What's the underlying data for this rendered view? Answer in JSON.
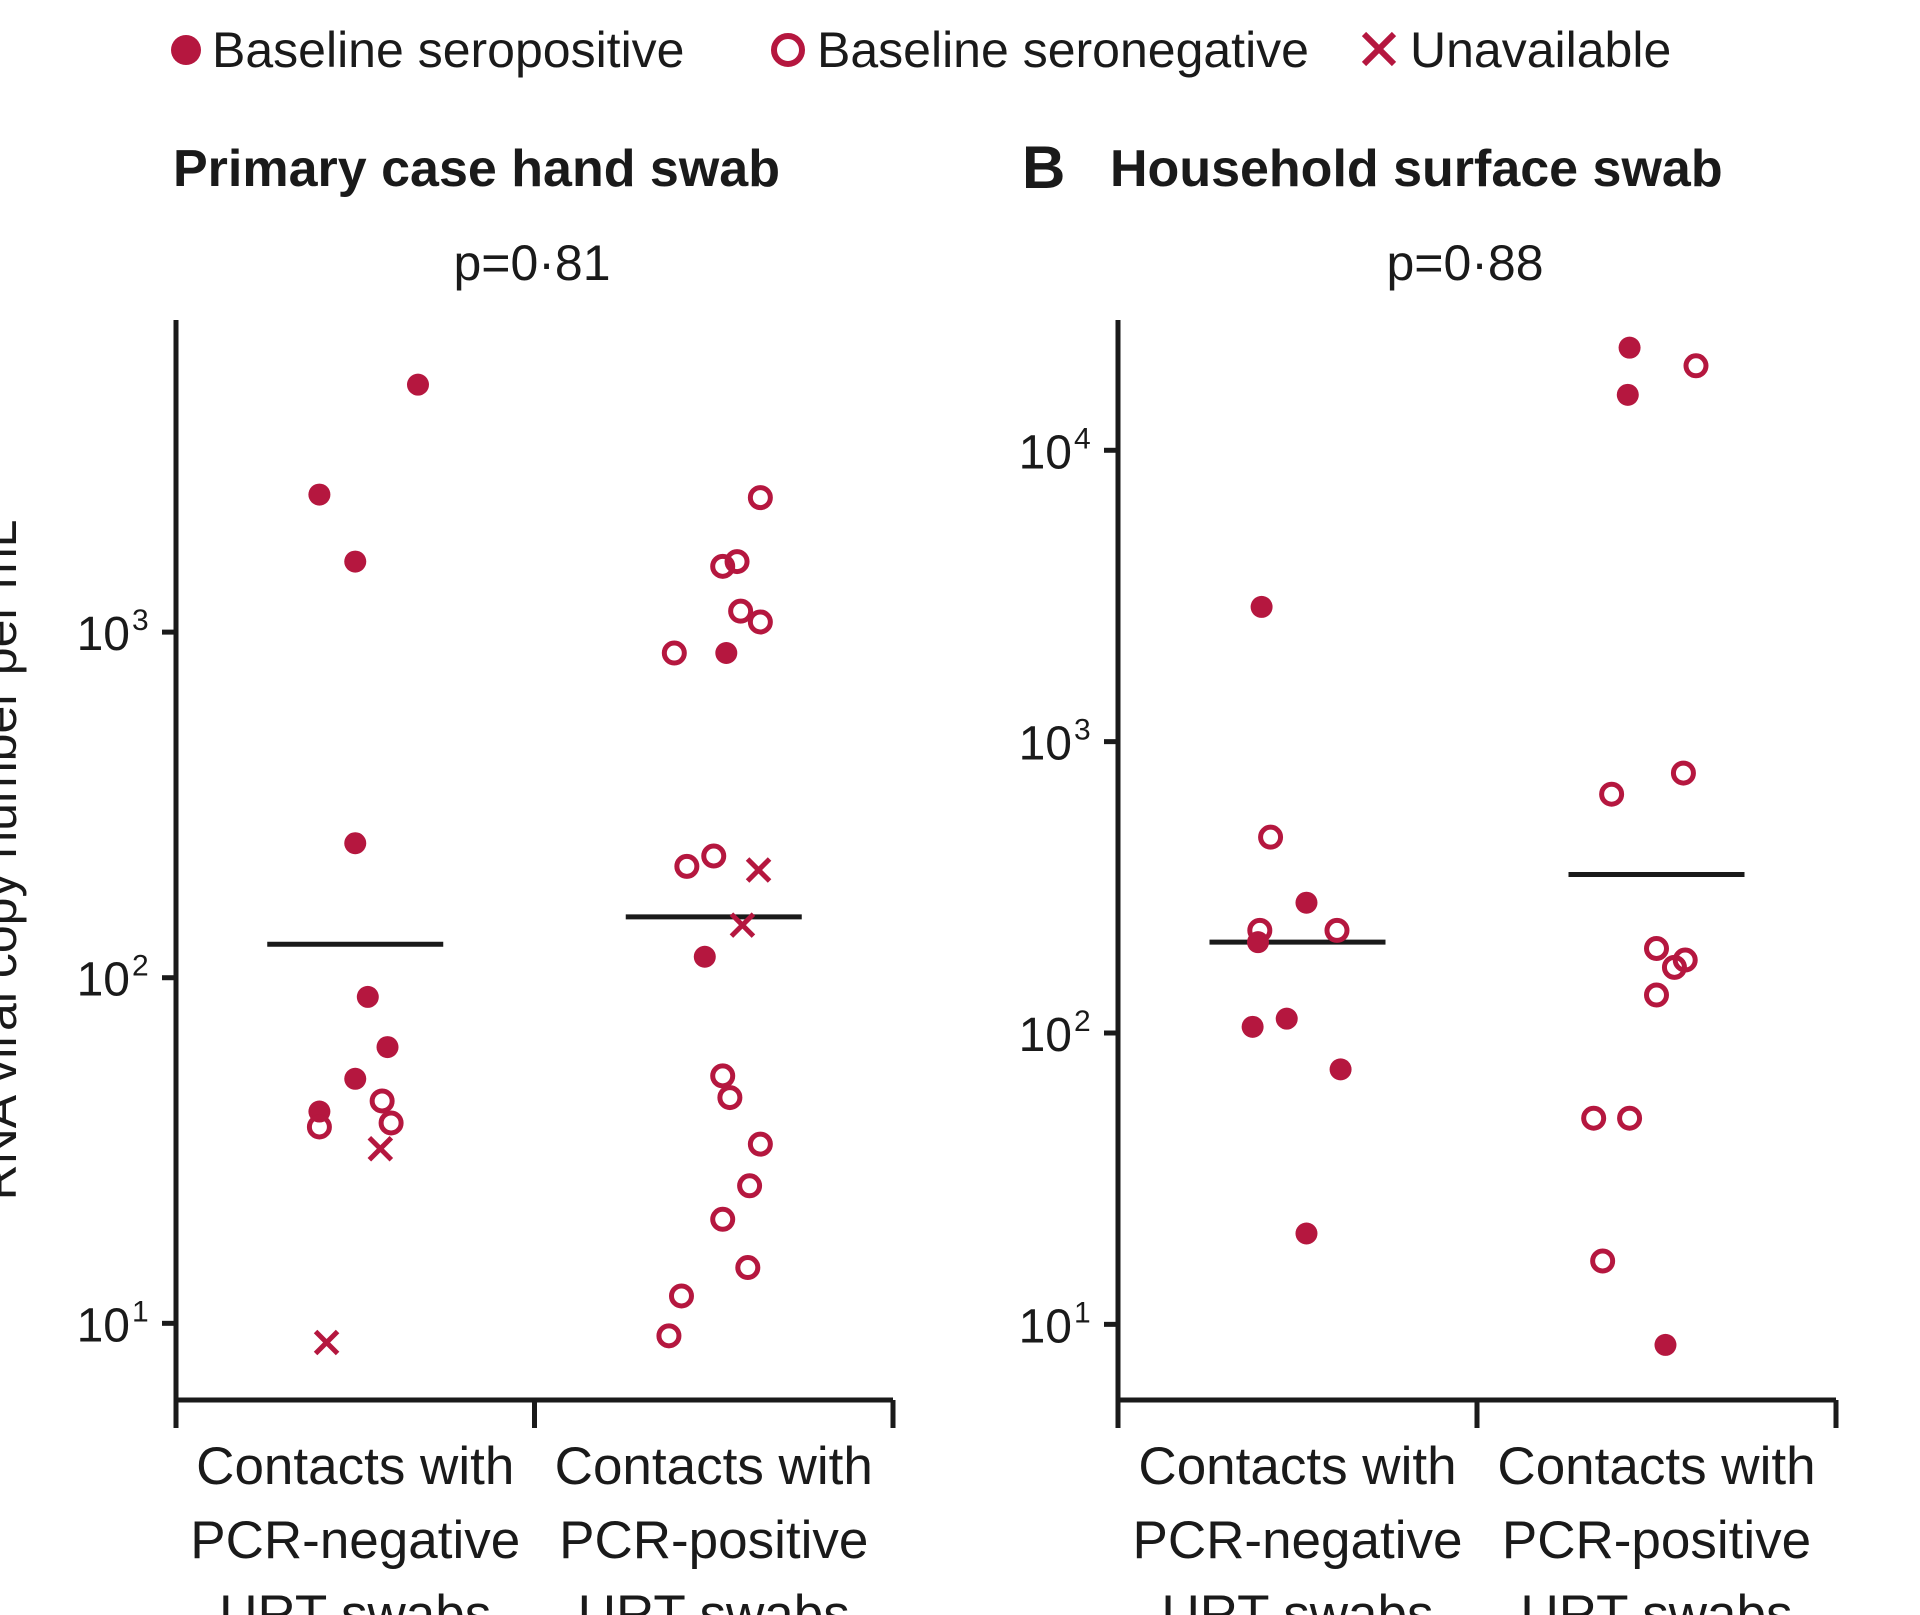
{
  "legend": {
    "items": [
      {
        "label": "Baseline seropositive",
        "marker": "filled-circle"
      },
      {
        "label": "Baseline seronegative",
        "marker": "open-circle"
      },
      {
        "label": "Unavailable",
        "marker": "cross"
      }
    ]
  },
  "colors": {
    "accent": "#b5173f",
    "axis": "#1a1a1a",
    "median": "#1a1a1a"
  },
  "chart_data": [
    {
      "type": "scatter",
      "panel_letter": "",
      "title": "Primary case hand swab",
      "annotation": "p=0·81",
      "ylabel": "RNA viral copy number per mL",
      "y_scale": "log",
      "ylim": [
        6,
        8000
      ],
      "y_ticks": [
        {
          "value": 10,
          "base": "10",
          "exp": "1"
        },
        {
          "value": 100,
          "base": "10",
          "exp": "2"
        },
        {
          "value": 1000,
          "base": "10",
          "exp": "3"
        }
      ],
      "categories": [
        {
          "lines": [
            "Contacts with",
            "PCR-negative",
            "URT swabs"
          ]
        },
        {
          "lines": [
            "Contacts with",
            "PCR-positive",
            "URT swabs"
          ]
        }
      ],
      "medians": [
        125,
        150
      ],
      "points": [
        {
          "cat": 0,
          "dx": 0.35,
          "y": 5200,
          "status": "seropositive"
        },
        {
          "cat": 0,
          "dx": -0.2,
          "y": 2500,
          "status": "seropositive"
        },
        {
          "cat": 0,
          "dx": 0.0,
          "y": 1600,
          "status": "seropositive"
        },
        {
          "cat": 0,
          "dx": 0.0,
          "y": 245,
          "status": "seropositive"
        },
        {
          "cat": 0,
          "dx": 0.07,
          "y": 88,
          "status": "seropositive"
        },
        {
          "cat": 0,
          "dx": 0.18,
          "y": 63,
          "status": "seropositive"
        },
        {
          "cat": 0,
          "dx": 0.0,
          "y": 51,
          "status": "seropositive"
        },
        {
          "cat": 0,
          "dx": -0.2,
          "y": 41,
          "status": "seropositive"
        },
        {
          "cat": 0,
          "dx": 0.15,
          "y": 44,
          "status": "seronegative"
        },
        {
          "cat": 0,
          "dx": -0.2,
          "y": 37,
          "status": "seronegative"
        },
        {
          "cat": 0,
          "dx": 0.2,
          "y": 38,
          "status": "seronegative"
        },
        {
          "cat": 0,
          "dx": 0.14,
          "y": 32,
          "status": "unavailable"
        },
        {
          "cat": 0,
          "dx": -0.16,
          "y": 8.8,
          "status": "unavailable"
        },
        {
          "cat": 1,
          "dx": 0.26,
          "y": 2450,
          "status": "seronegative"
        },
        {
          "cat": 1,
          "dx": 0.05,
          "y": 1550,
          "status": "seronegative"
        },
        {
          "cat": 1,
          "dx": 0.13,
          "y": 1600,
          "status": "seronegative"
        },
        {
          "cat": 1,
          "dx": 0.15,
          "y": 1150,
          "status": "seronegative"
        },
        {
          "cat": 1,
          "dx": 0.26,
          "y": 1070,
          "status": "seronegative"
        },
        {
          "cat": 1,
          "dx": -0.22,
          "y": 870,
          "status": "seronegative"
        },
        {
          "cat": 1,
          "dx": 0.07,
          "y": 870,
          "status": "seropositive"
        },
        {
          "cat": 1,
          "dx": -0.15,
          "y": 210,
          "status": "seronegative"
        },
        {
          "cat": 1,
          "dx": 0.0,
          "y": 225,
          "status": "seronegative"
        },
        {
          "cat": 1,
          "dx": 0.25,
          "y": 205,
          "status": "unavailable"
        },
        {
          "cat": 1,
          "dx": 0.16,
          "y": 142,
          "status": "unavailable"
        },
        {
          "cat": 1,
          "dx": -0.05,
          "y": 115,
          "status": "seropositive"
        },
        {
          "cat": 1,
          "dx": 0.05,
          "y": 52,
          "status": "seronegative"
        },
        {
          "cat": 1,
          "dx": 0.09,
          "y": 45,
          "status": "seronegative"
        },
        {
          "cat": 1,
          "dx": 0.26,
          "y": 33,
          "status": "seronegative"
        },
        {
          "cat": 1,
          "dx": 0.2,
          "y": 25,
          "status": "seronegative"
        },
        {
          "cat": 1,
          "dx": 0.05,
          "y": 20,
          "status": "seronegative"
        },
        {
          "cat": 1,
          "dx": 0.19,
          "y": 14.5,
          "status": "seronegative"
        },
        {
          "cat": 1,
          "dx": -0.18,
          "y": 12,
          "status": "seronegative"
        },
        {
          "cat": 1,
          "dx": -0.25,
          "y": 9.2,
          "status": "seronegative"
        }
      ]
    },
    {
      "type": "scatter",
      "panel_letter": "B",
      "title": "Household surface swab",
      "annotation": "p=0·88",
      "ylabel": "",
      "y_scale": "log",
      "ylim": [
        5.5,
        28000
      ],
      "y_ticks": [
        {
          "value": 10,
          "base": "10",
          "exp": "1"
        },
        {
          "value": 100,
          "base": "10",
          "exp": "2"
        },
        {
          "value": 1000,
          "base": "10",
          "exp": "3"
        },
        {
          "value": 10000,
          "base": "10",
          "exp": "4"
        }
      ],
      "categories": [
        {
          "lines": [
            "Contacts with",
            "PCR-negative",
            "URT swabs"
          ]
        },
        {
          "lines": [
            "Contacts with",
            "PCR-positive",
            "URT swabs"
          ]
        }
      ],
      "medians": [
        205,
        350
      ],
      "points": [
        {
          "cat": 0,
          "dx": -0.2,
          "y": 2900,
          "status": "seropositive"
        },
        {
          "cat": 0,
          "dx": -0.15,
          "y": 470,
          "status": "seronegative"
        },
        {
          "cat": 0,
          "dx": 0.05,
          "y": 280,
          "status": "seropositive"
        },
        {
          "cat": 0,
          "dx": -0.21,
          "y": 225,
          "status": "seronegative"
        },
        {
          "cat": 0,
          "dx": 0.22,
          "y": 225,
          "status": "seronegative"
        },
        {
          "cat": 0,
          "dx": -0.22,
          "y": 205,
          "status": "seropositive"
        },
        {
          "cat": 0,
          "dx": -0.25,
          "y": 105,
          "status": "seropositive"
        },
        {
          "cat": 0,
          "dx": -0.06,
          "y": 112,
          "status": "seropositive"
        },
        {
          "cat": 0,
          "dx": 0.24,
          "y": 75,
          "status": "seropositive"
        },
        {
          "cat": 0,
          "dx": 0.05,
          "y": 20.5,
          "status": "seropositive"
        },
        {
          "cat": 1,
          "dx": -0.15,
          "y": 22500,
          "status": "seropositive"
        },
        {
          "cat": 1,
          "dx": 0.22,
          "y": 19500,
          "status": "seronegative"
        },
        {
          "cat": 1,
          "dx": -0.16,
          "y": 15500,
          "status": "seropositive"
        },
        {
          "cat": 1,
          "dx": 0.15,
          "y": 780,
          "status": "seronegative"
        },
        {
          "cat": 1,
          "dx": -0.25,
          "y": 660,
          "status": "seronegative"
        },
        {
          "cat": 1,
          "dx": 0.0,
          "y": 195,
          "status": "seronegative"
        },
        {
          "cat": 1,
          "dx": 0.1,
          "y": 168,
          "status": "seronegative"
        },
        {
          "cat": 1,
          "dx": 0.16,
          "y": 178,
          "status": "seronegative"
        },
        {
          "cat": 1,
          "dx": 0.0,
          "y": 135,
          "status": "seronegative"
        },
        {
          "cat": 1,
          "dx": -0.35,
          "y": 51,
          "status": "seronegative"
        },
        {
          "cat": 1,
          "dx": -0.15,
          "y": 51,
          "status": "seronegative"
        },
        {
          "cat": 1,
          "dx": -0.3,
          "y": 16.5,
          "status": "seronegative"
        },
        {
          "cat": 1,
          "dx": 0.05,
          "y": 8.5,
          "status": "seropositive"
        }
      ]
    }
  ]
}
